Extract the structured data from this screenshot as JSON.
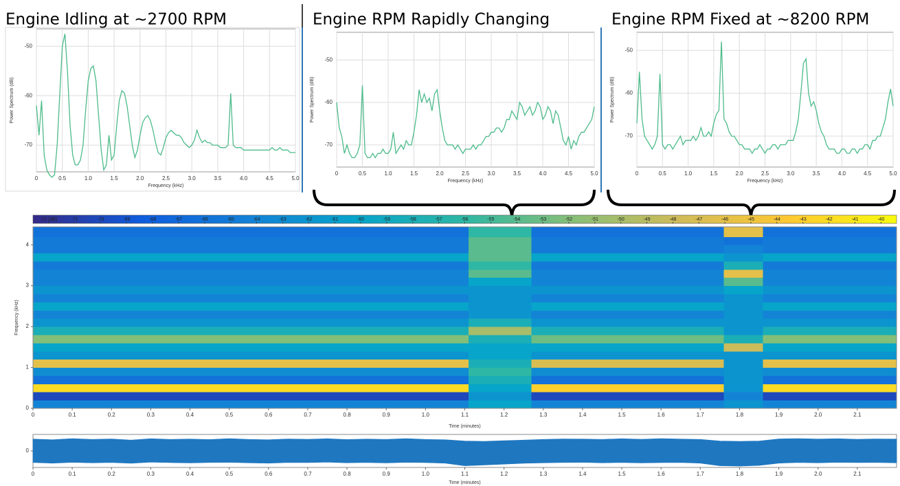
{
  "chart_data": [
    {
      "type": "line",
      "title": "Engine Idling at ~2700 RPM",
      "x_label": "Frequency (kHz)",
      "y_label": "Power Spectrum (dB)",
      "color": "#4cbb8a",
      "grid": true,
      "xlim": [
        0,
        5
      ],
      "ylim": [
        -75.4,
        -46.5
      ],
      "xticks": [
        0,
        0.5,
        {
          "value": 1,
          "label": "1.0"
        },
        1.5,
        {
          "value": 2,
          "label": "2.0"
        },
        2.5,
        {
          "value": 3,
          "label": "3.0"
        },
        3.5,
        {
          "value": 4,
          "label": "4.0"
        },
        4.5,
        {
          "value": 5,
          "label": "5.0"
        }
      ],
      "yticks": [
        -50,
        -60,
        -70
      ],
      "x": [
        0,
        0.05,
        0.1,
        0.15,
        0.2,
        0.25,
        0.3,
        0.35,
        0.4,
        0.45,
        0.5,
        0.55,
        0.6,
        0.65,
        0.7,
        0.75,
        0.8,
        0.85,
        0.9,
        0.95,
        1,
        1.05,
        1.1,
        1.15,
        1.2,
        1.25,
        1.3,
        1.35,
        1.4,
        1.45,
        1.5,
        1.55,
        1.6,
        1.65,
        1.7,
        1.75,
        1.8,
        1.85,
        1.9,
        1.95,
        2,
        2.05,
        2.1,
        2.15,
        2.2,
        2.25,
        2.3,
        2.35,
        2.4,
        2.45,
        2.5,
        2.55,
        2.6,
        2.65,
        2.7,
        2.75,
        2.8,
        2.85,
        2.9,
        2.95,
        3,
        3.05,
        3.1,
        3.15,
        3.2,
        3.25,
        3.3,
        3.35,
        3.4,
        3.45,
        3.5,
        3.55,
        3.6,
        3.65,
        3.7,
        3.75,
        3.8,
        3.85,
        3.9,
        3.95,
        4,
        4.05,
        4.1,
        4.15,
        4.2,
        4.25,
        4.3,
        4.35,
        4.4,
        4.45,
        4.5,
        4.55,
        4.6,
        4.65,
        4.7,
        4.75,
        4.8,
        4.85,
        4.9,
        4.95,
        5
      ],
      "values": [
        -62,
        -68,
        -61,
        -72,
        -75,
        -76,
        -76.5,
        -76,
        -70,
        -60,
        -50,
        -47.5,
        -55,
        -66,
        -72,
        -74,
        -74,
        -73,
        -70,
        -63,
        -57,
        -54.5,
        -54,
        -57,
        -64,
        -71,
        -75,
        -74,
        -68,
        -73,
        -72,
        -66,
        -61,
        -59,
        -59.5,
        -62,
        -66,
        -70,
        -72.5,
        -71,
        -68,
        -65.5,
        -64.5,
        -64,
        -65,
        -67,
        -69.5,
        -71.5,
        -72,
        -70.5,
        -68.5,
        -67.5,
        -67,
        -67.5,
        -68,
        -68,
        -68.5,
        -69.5,
        -70,
        -70.5,
        -70,
        -69,
        -67,
        -68.5,
        -69.5,
        -69,
        -69.5,
        -69.5,
        -70,
        -70,
        -70,
        -70.5,
        -70.5,
        -70.5,
        -70,
        -59.5,
        -70,
        -70.5,
        -70.5,
        -70.5,
        -71,
        -71,
        -71,
        -71,
        -71,
        -71,
        -71,
        -71,
        -71,
        -71,
        -71,
        -70.5,
        -71,
        -71,
        -70.5,
        -71,
        -71,
        -71,
        -71.5,
        -71.5,
        -71.5
      ]
    },
    {
      "type": "line",
      "title": "Engine RPM Rapidly Changing",
      "x_label": "Frequency (kHz)",
      "y_label": "Power Spectrum (dB)",
      "color": "#4cbb8a",
      "grid": true,
      "xlim": [
        0,
        5
      ],
      "ylim": [
        -75.2,
        -43.5
      ],
      "xticks": [
        0,
        0.5,
        {
          "value": 1,
          "label": "1.0"
        },
        1.5,
        {
          "value": 2,
          "label": "2.0"
        },
        2.5,
        {
          "value": 3,
          "label": "3.0"
        },
        3.5,
        {
          "value": 4,
          "label": "4.0"
        },
        4.5,
        {
          "value": 5,
          "label": "5.0"
        }
      ],
      "yticks": [
        -50,
        -60,
        -70
      ],
      "x": [
        0,
        0.05,
        0.1,
        0.15,
        0.2,
        0.25,
        0.3,
        0.35,
        0.4,
        0.45,
        0.5,
        0.55,
        0.6,
        0.65,
        0.7,
        0.75,
        0.8,
        0.85,
        0.9,
        0.95,
        1,
        1.05,
        1.1,
        1.15,
        1.2,
        1.25,
        1.3,
        1.35,
        1.4,
        1.45,
        1.5,
        1.55,
        1.6,
        1.65,
        1.7,
        1.75,
        1.8,
        1.85,
        1.9,
        1.95,
        2,
        2.05,
        2.1,
        2.15,
        2.2,
        2.25,
        2.3,
        2.35,
        2.4,
        2.45,
        2.5,
        2.55,
        2.6,
        2.65,
        2.7,
        2.75,
        2.8,
        2.85,
        2.9,
        2.95,
        3,
        3.05,
        3.1,
        3.15,
        3.2,
        3.25,
        3.3,
        3.35,
        3.4,
        3.45,
        3.5,
        3.55,
        3.6,
        3.65,
        3.7,
        3.75,
        3.8,
        3.85,
        3.9,
        3.95,
        4,
        4.05,
        4.1,
        4.15,
        4.2,
        4.25,
        4.3,
        4.35,
        4.4,
        4.45,
        4.5,
        4.55,
        4.6,
        4.65,
        4.7,
        4.75,
        4.8,
        4.85,
        4.9,
        4.95,
        5
      ],
      "values": [
        -60,
        -66,
        -68,
        -72,
        -70,
        -72,
        -73,
        -73,
        -72,
        -70,
        -56,
        -72,
        -73,
        -73,
        -72,
        -73,
        -72,
        -72,
        -71,
        -72,
        -72,
        -71,
        -67,
        -72,
        -71,
        -70,
        -71,
        -69,
        -70,
        -70,
        -67,
        -63,
        -57,
        -60,
        -58,
        -60,
        -59,
        -62,
        -58,
        -57,
        -62,
        -66,
        -69,
        -70,
        -70,
        -70,
        -71,
        -70,
        -71,
        -72,
        -71,
        -71,
        -71,
        -70,
        -71,
        -70,
        -70,
        -69,
        -68,
        -68,
        -67,
        -67,
        -66,
        -66,
        -67,
        -66,
        -64,
        -64,
        -62,
        -63,
        -64,
        -60,
        -61,
        -63,
        -62,
        -61,
        -63,
        -62,
        -60,
        -61,
        -64,
        -63,
        -61,
        -62,
        -65,
        -62,
        -63,
        -66,
        -69,
        -70,
        -68,
        -71,
        -69,
        -70,
        -68,
        -67,
        -67,
        -66,
        -65,
        -64,
        -61
      ]
    },
    {
      "type": "line",
      "title": "Engine RPM Fixed at ~8200 RPM",
      "x_label": "Frequency (kHz)",
      "y_label": "Power Spectrum (dB)",
      "color": "#4cbb8a",
      "grid": true,
      "xlim": [
        0,
        5
      ],
      "ylim": [
        -77.2,
        -45.8
      ],
      "xticks": [
        0,
        0.5,
        {
          "value": 1,
          "label": "1.0"
        },
        1.5,
        {
          "value": 2,
          "label": "2.0"
        },
        2.5,
        {
          "value": 3,
          "label": "3.0"
        },
        3.5,
        {
          "value": 4,
          "label": "4.0"
        },
        4.5,
        {
          "value": 5,
          "label": "5.0"
        }
      ],
      "yticks": [
        -50,
        -60,
        -70
      ],
      "x": [
        0,
        0.05,
        0.1,
        0.15,
        0.2,
        0.25,
        0.3,
        0.35,
        0.4,
        0.45,
        0.5,
        0.55,
        0.6,
        0.65,
        0.7,
        0.75,
        0.8,
        0.85,
        0.9,
        0.95,
        1,
        1.05,
        1.1,
        1.15,
        1.2,
        1.25,
        1.3,
        1.35,
        1.4,
        1.45,
        1.5,
        1.55,
        1.6,
        1.65,
        1.7,
        1.75,
        1.8,
        1.85,
        1.9,
        1.95,
        2,
        2.05,
        2.1,
        2.15,
        2.2,
        2.25,
        2.3,
        2.35,
        2.4,
        2.45,
        2.5,
        2.55,
        2.6,
        2.65,
        2.7,
        2.75,
        2.8,
        2.85,
        2.9,
        2.95,
        3,
        3.05,
        3.1,
        3.15,
        3.2,
        3.25,
        3.3,
        3.35,
        3.4,
        3.45,
        3.5,
        3.55,
        3.6,
        3.65,
        3.7,
        3.75,
        3.8,
        3.85,
        3.9,
        3.95,
        4,
        4.05,
        4.1,
        4.15,
        4.2,
        4.25,
        4.3,
        4.35,
        4.4,
        4.45,
        4.5,
        4.55,
        4.6,
        4.65,
        4.7,
        4.75,
        4.8,
        4.85,
        4.9,
        4.95,
        5
      ],
      "values": [
        -67,
        -55,
        -66,
        -70,
        -71,
        -72,
        -73,
        -72,
        -70,
        -55.5,
        -72,
        -73,
        -72,
        -72,
        -73,
        -72,
        -71,
        -70,
        -72,
        -71,
        -71,
        -71,
        -70,
        -71,
        -70,
        -68,
        -70,
        -70,
        -69,
        -70,
        -67,
        -65,
        -64,
        -48,
        -66,
        -67,
        -69,
        -70,
        -70,
        -71,
        -72,
        -72,
        -73,
        -73,
        -73,
        -74,
        -73,
        -73,
        -72,
        -73,
        -74,
        -73,
        -73,
        -72,
        -72,
        -73,
        -72,
        -72,
        -72,
        -71,
        -71,
        -71,
        -69,
        -66,
        -60,
        -53,
        -52,
        -60,
        -63,
        -62,
        -64,
        -67,
        -69,
        -70,
        -72,
        -73,
        -73,
        -73,
        -74,
        -74,
        -73,
        -73,
        -74,
        -74,
        -73,
        -73,
        -74,
        -73,
        -73,
        -72,
        -72,
        -73,
        -71,
        -71,
        -70,
        -70,
        -68,
        -66,
        -62,
        -59,
        -63
      ]
    },
    {
      "type": "heatmap",
      "x_label": "Time (minutes)",
      "y_label": "Frequency (kHz)",
      "xlim": [
        0,
        2.2
      ],
      "ylim": [
        0,
        4.44
      ],
      "xticks": [
        0,
        0.1,
        0.2,
        0.3,
        0.4,
        0.5,
        0.6,
        0.7,
        0.8,
        0.9,
        {
          "value": 1,
          "label": "1.0"
        },
        1.1,
        1.2,
        1.3,
        1.4,
        1.5,
        1.6,
        1.7,
        1.8,
        1.9,
        {
          "value": 2,
          "label": "2.0"
        },
        2.1
      ],
      "yticks": [
        0,
        1,
        2,
        3,
        4
      ],
      "clim": [
        -72.6,
        -39.4
      ],
      "cticks": [
        {
          "value": -72,
          "label": "-72 (dB)"
        },
        -71,
        -70,
        -69,
        -68,
        -67,
        -66,
        -65,
        -64,
        -63,
        -62,
        -61,
        -60,
        -59,
        -58,
        -57,
        -56,
        -55,
        -54,
        -53,
        -52,
        -51,
        -50,
        -49,
        -48,
        -47,
        -46,
        -45,
        -44,
        -43,
        -42,
        -41,
        -40
      ],
      "colormap": [
        "#352a87",
        "#0f5cdd",
        "#1481d6",
        "#06a4ca",
        "#2eb7a4",
        "#87bf77",
        "#d1bb59",
        "#fec832",
        "#f9fb0e"
      ],
      "xbins": [
        0,
        1.11,
        1.27,
        1.76,
        1.86,
        2.2
      ],
      "ybins": [
        0,
        0.2,
        0.4,
        0.6,
        0.8,
        1,
        1.2,
        1.4,
        1.6,
        1.8,
        2,
        2.2,
        2.4,
        2.6,
        2.8,
        3,
        3.2,
        3.4,
        3.6,
        3.8,
        4,
        4.2,
        4.44
      ],
      "values": [
        [
          -64,
          -60,
          -64,
          -62,
          -64
        ],
        [
          -70,
          -62,
          -70,
          -64,
          -70
        ],
        [
          -42,
          -60,
          -43,
          -62,
          -42
        ],
        [
          -66,
          -58,
          -66,
          -62,
          -66
        ],
        [
          -63,
          -56,
          -63,
          -62,
          -63
        ],
        [
          -46,
          -58,
          -47,
          -62,
          -46
        ],
        [
          -62,
          -60,
          -62,
          -62,
          -62
        ],
        [
          -60,
          -60,
          -60,
          -48,
          -60
        ],
        [
          -52,
          -58,
          -53,
          -58,
          -52
        ],
        [
          -58,
          -50,
          -58,
          -62,
          -58
        ],
        [
          -62,
          -58,
          -62,
          -62,
          -62
        ],
        [
          -64,
          -62,
          -64,
          -62,
          -64
        ],
        [
          -60,
          -62,
          -60,
          -62,
          -60
        ],
        [
          -64,
          -62,
          -64,
          -62,
          -64
        ],
        [
          -62,
          -62,
          -62,
          -60,
          -62
        ],
        [
          -64,
          -60,
          -64,
          -54,
          -64
        ],
        [
          -64,
          -54,
          -64,
          -46,
          -64
        ],
        [
          -65,
          -56,
          -65,
          -58,
          -65
        ],
        [
          -60,
          -54,
          -60,
          -62,
          -60
        ],
        [
          -65,
          -54,
          -65,
          -64,
          -65
        ],
        [
          -65,
          -54,
          -65,
          -66,
          -65
        ],
        [
          -66,
          -56,
          -66,
          -46,
          -66
        ]
      ]
    },
    {
      "type": "band",
      "x_label": "Time (minutes)",
      "color": "#1f77c0",
      "xlim": [
        0,
        2.2
      ],
      "ylim": [
        -1,
        1
      ],
      "xticks": [
        0,
        0.1,
        0.2,
        0.3,
        0.4,
        0.5,
        0.6,
        0.7,
        0.8,
        0.9,
        {
          "value": 1,
          "label": "1.0"
        },
        1.1,
        1.2,
        1.3,
        1.4,
        1.5,
        1.6,
        1.7,
        1.8,
        1.9,
        {
          "value": 2,
          "label": "2.0"
        },
        2.1
      ],
      "yticks": [
        0
      ],
      "x": [
        0,
        0.05,
        0.1,
        0.15,
        0.2,
        0.25,
        0.3,
        0.35,
        0.4,
        0.45,
        0.5,
        0.55,
        0.6,
        0.65,
        0.7,
        0.75,
        0.8,
        0.85,
        0.9,
        0.95,
        1,
        1.05,
        1.1,
        1.15,
        1.2,
        1.25,
        1.3,
        1.35,
        1.4,
        1.45,
        1.5,
        1.55,
        1.6,
        1.65,
        1.7,
        1.75,
        1.8,
        1.85,
        1.9,
        1.95,
        2,
        2.05,
        2.1,
        2.15,
        2.2
      ],
      "upper": [
        0.72,
        0.68,
        0.75,
        0.7,
        0.73,
        0.66,
        0.74,
        0.7,
        0.72,
        0.69,
        0.75,
        0.7,
        0.68,
        0.73,
        0.71,
        0.74,
        0.69,
        0.72,
        0.7,
        0.75,
        0.7,
        0.68,
        0.6,
        0.58,
        0.62,
        0.66,
        0.7,
        0.73,
        0.72,
        0.7,
        0.74,
        0.71,
        0.75,
        0.72,
        0.7,
        0.6,
        0.58,
        0.6,
        0.73,
        0.75,
        0.72,
        0.74,
        0.71,
        0.73,
        0.72
      ],
      "lower": [
        -0.7,
        -0.74,
        -0.69,
        -0.72,
        -0.7,
        -0.75,
        -0.68,
        -0.71,
        -0.73,
        -0.7,
        -0.69,
        -0.72,
        -0.74,
        -0.7,
        -0.71,
        -0.68,
        -0.72,
        -0.7,
        -0.73,
        -0.69,
        -0.71,
        -0.74,
        -0.9,
        -0.85,
        -0.8,
        -0.75,
        -0.72,
        -0.7,
        -0.69,
        -0.72,
        -0.7,
        -0.73,
        -0.71,
        -0.7,
        -0.74,
        -0.9,
        -0.92,
        -0.88,
        -0.74,
        -0.7,
        -0.72,
        -0.69,
        -0.71,
        -0.7,
        -0.72
      ]
    }
  ]
}
